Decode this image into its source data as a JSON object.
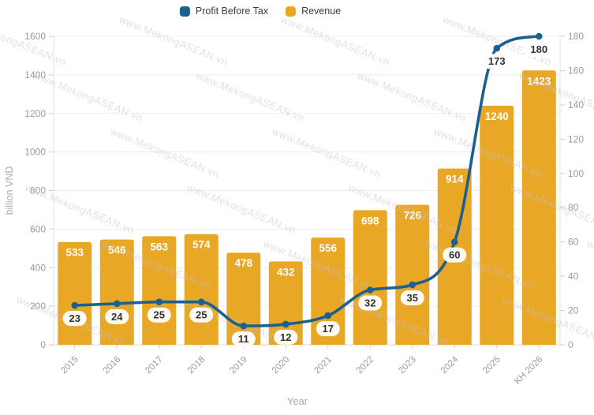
{
  "legend": {
    "items": [
      {
        "label": "Profit Before Tax",
        "color": "#1b618f"
      },
      {
        "label": "Revenue",
        "color": "#e9a726"
      }
    ]
  },
  "chart_data": {
    "type": "bar+line",
    "categories": [
      "2015",
      "2016",
      "2017",
      "2018",
      "2019",
      "2020",
      "2021",
      "2022",
      "2023",
      "2024",
      "2025",
      "KH 2026"
    ],
    "series": [
      {
        "name": "Profit Before Tax",
        "type": "line",
        "axis": "right",
        "color": "#1b618f",
        "values": [
          23,
          24,
          25,
          25,
          11,
          12,
          17,
          32,
          35,
          60,
          173,
          180
        ]
      },
      {
        "name": "Revenue",
        "type": "bar",
        "axis": "left",
        "color": "#e9a726",
        "values": [
          533,
          546,
          563,
          574,
          478,
          432,
          556,
          698,
          726,
          914,
          1240,
          1423
        ]
      }
    ],
    "left_axis": {
      "title": "billion VND",
      "min": 0,
      "max": 1600,
      "step": 200
    },
    "right_axis": {
      "title": "",
      "min": 0,
      "max": 180,
      "step": 20
    },
    "xlabel": "Year",
    "watermark": "www.MekongASEAN.vn",
    "grid": true,
    "legend_position": "top-center",
    "colors": {
      "grid": "#ededf1",
      "axis_line": "#e3e3e7",
      "baseline": "#dcdce0",
      "tick": "#cfcfd4",
      "axis_text": "#9a9aa0",
      "axis_title": "#ababb0",
      "bar_label": "#ffffff",
      "point_label_text": "#333333",
      "point_label_bg": "#ffffff",
      "watermark": "#c2c2ce"
    }
  }
}
